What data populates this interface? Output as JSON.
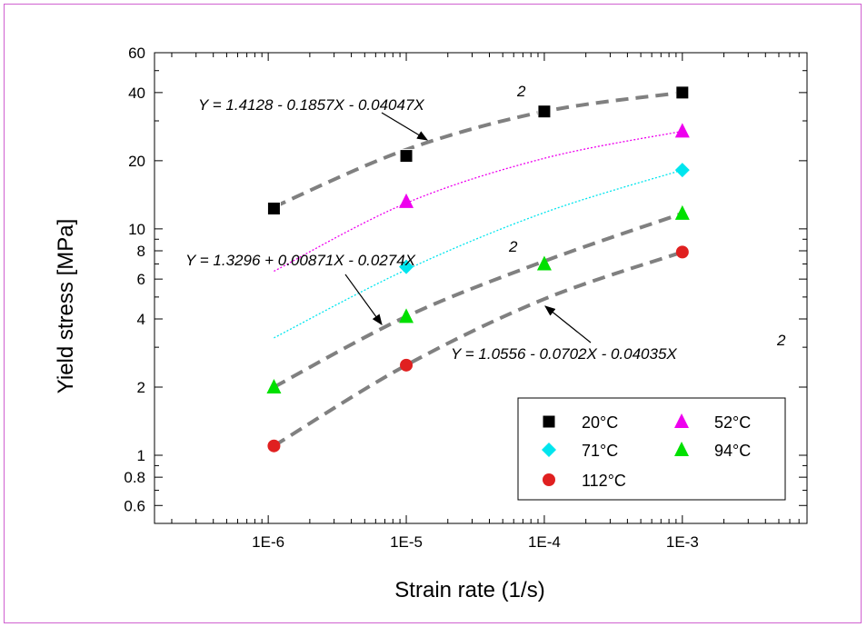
{
  "chart_data": {
    "type": "scatter",
    "xlabel": "Strain rate (1/s)",
    "ylabel": "Yield stress [MPa]",
    "xscale": "log",
    "yscale": "log",
    "xlim": [
      1.5e-07,
      0.008
    ],
    "ylim": [
      0.5,
      60
    ],
    "x_ticks": [
      1e-06,
      1e-05,
      0.0001,
      0.001
    ],
    "x_tick_labels": [
      "1E-6",
      "1E-5",
      "1E-4",
      "1E-3"
    ],
    "y_ticks": [
      0.6,
      0.8,
      1,
      2,
      4,
      6,
      8,
      10,
      20,
      40,
      60
    ],
    "y_tick_labels": [
      "0.6",
      "0.8",
      "1",
      "2",
      "4",
      "6",
      "8",
      "10",
      "20",
      "40",
      "60"
    ],
    "legend_position": "bottom-right",
    "series": [
      {
        "name": "20°C",
        "marker": "square",
        "color": "#000000",
        "x": [
          1.1e-06,
          1e-05,
          0.0001,
          0.001
        ],
        "y": [
          12.3,
          21,
          33,
          40
        ],
        "fit": [
          [
            1.1e-06,
            12.5
          ],
          [
            1e-05,
            22.4
          ],
          [
            0.0001,
            33
          ],
          [
            0.001,
            40
          ]
        ],
        "fit_style": "dashed"
      },
      {
        "name": "52°C",
        "marker": "triangle",
        "color": "#ee00ee",
        "x": [
          1e-05,
          0.001
        ],
        "y": [
          13.2,
          27
        ],
        "fit": [
          [
            1.1e-06,
            6.5
          ],
          [
            1e-05,
            13
          ],
          [
            0.0001,
            20.5
          ],
          [
            0.001,
            27
          ]
        ],
        "fit_style": "dotted"
      },
      {
        "name": "71°C",
        "marker": "diamond",
        "color": "#00e5ee",
        "x": [
          1e-05,
          0.001
        ],
        "y": [
          6.8,
          18.2
        ],
        "fit": [
          [
            1.1e-06,
            3.3
          ],
          [
            1e-05,
            6.6
          ],
          [
            0.0001,
            11.8
          ],
          [
            0.001,
            18.2
          ]
        ],
        "fit_style": "dotted"
      },
      {
        "name": "94°C",
        "marker": "triangle",
        "color": "#00e000",
        "x": [
          1.1e-06,
          1e-05,
          0.0001,
          0.001
        ],
        "y": [
          2,
          4.1,
          7,
          11.7
        ],
        "fit": [
          [
            1.1e-06,
            2
          ],
          [
            1e-05,
            4.1
          ],
          [
            0.0001,
            7.2
          ],
          [
            0.001,
            11.7
          ]
        ],
        "fit_style": "dashed"
      },
      {
        "name": "112°C",
        "marker": "circle",
        "color": "#e02020",
        "x": [
          1.1e-06,
          1e-05,
          0.001
        ],
        "y": [
          1.1,
          2.5,
          7.9
        ],
        "fit": [
          [
            1.1e-06,
            1.1
          ],
          [
            1e-05,
            2.5
          ],
          [
            0.0001,
            4.9
          ],
          [
            0.001,
            7.9
          ]
        ],
        "fit_style": "dashed"
      }
    ],
    "annotations": [
      {
        "text": "Y = 1.4128 - 0.1857X - 0.04047X",
        "superscript": "2",
        "target": "20°C"
      },
      {
        "text": "Y = 1.3296 + 0.00871X - 0.0274X",
        "superscript": "2",
        "target": "94°C"
      },
      {
        "text": "Y = 1.0556 - 0.0702X - 0.04035X",
        "superscript": "2",
        "target": "112°C"
      }
    ],
    "legend_entries": [
      {
        "label": "20°C",
        "marker": "square",
        "color": "#000000"
      },
      {
        "label": "52°C",
        "marker": "triangle",
        "color": "#ee00ee"
      },
      {
        "label": "71°C",
        "marker": "diamond",
        "color": "#00e5ee"
      },
      {
        "label": "94°C",
        "marker": "triangle",
        "color": "#00e000"
      },
      {
        "label": "112°C",
        "marker": "circle",
        "color": "#e02020"
      }
    ]
  }
}
